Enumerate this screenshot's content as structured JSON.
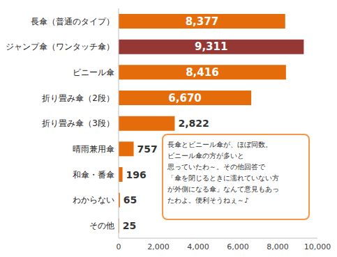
{
  "chart_data": {
    "type": "bar",
    "orientation": "horizontal",
    "categories": [
      "長傘（普通のタイプ）",
      "ジャンプ傘（ワンタッチ傘）",
      "ビニール傘",
      "折り畳み傘（2段）",
      "折り畳み傘（3段）",
      "晴雨兼用傘",
      "和傘・番傘",
      "わからない",
      "その他"
    ],
    "values": [
      8377,
      9311,
      8416,
      6670,
      2822,
      757,
      196,
      65,
      25
    ],
    "value_labels": [
      "8,377",
      "9,311",
      "8,416",
      "6,670",
      "2,822",
      "757",
      "196",
      "65",
      "25"
    ],
    "colors": [
      "#e46c0a",
      "#953735",
      "#e46c0a",
      "#e46c0a",
      "#e46c0a",
      "#e46c0a",
      "#e46c0a",
      "#e46c0a",
      "#e46c0a"
    ],
    "data_labels": true,
    "xlim": [
      0,
      10000
    ],
    "xticks": [
      0,
      {
        "value": 2000,
        "label": "2,000"
      },
      {
        "value": 4000,
        "label": "4,000"
      },
      {
        "value": 6000,
        "label": "6,000"
      },
      {
        "value": 8000,
        "label": "8,000"
      },
      {
        "value": 10000,
        "label": "10,000"
      }
    ],
    "grid": false,
    "annotations": [
      "長傘とビニール傘が、ほぼ同数。",
      "ビニール傘の方が多いと",
      "思っていたわ～。その他回答で",
      "「傘を閉じるときに濡れていない方",
      "が外側になる傘」なんて意見もあっ",
      "たわよ。便利そうねぇ～♪"
    ]
  }
}
